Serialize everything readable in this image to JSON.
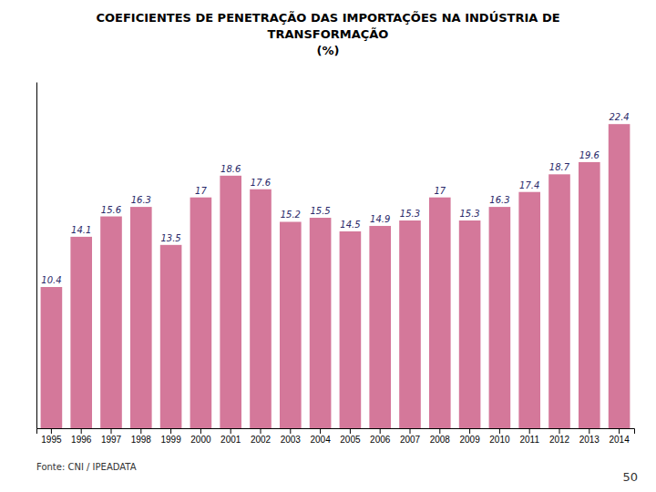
{
  "chart_data": {
    "type": "bar",
    "title": [
      "COEFICIENTES DE PENETRAÇÃO DAS IMPORTAÇÕES NA INDÚSTRIA DE",
      "TRANSFORMAÇÃO"
    ],
    "subtitle": "(%)",
    "annotations": [
      "Fonte: CNI / IPEADATA",
      "50"
    ],
    "categories": [
      "1995",
      "1996",
      "1997",
      "1998",
      "1999",
      "2000",
      "2001",
      "2002",
      "2003",
      "2004",
      "2005",
      "2006",
      "2007",
      "2008",
      "2009",
      "2010",
      "2011",
      "2012",
      "2013",
      "2014"
    ],
    "values": [
      10.4,
      14.1,
      15.6,
      16.3,
      13.5,
      17.0,
      18.6,
      17.6,
      15.2,
      15.5,
      14.5,
      14.9,
      15.3,
      17.0,
      15.3,
      16.3,
      17.4,
      18.7,
      19.6,
      22.4
    ],
    "color": "#d4789a",
    "ylim": [
      0,
      25.5
    ],
    "data_labels": true,
    "tick_labels": "x",
    "grid": false
  }
}
